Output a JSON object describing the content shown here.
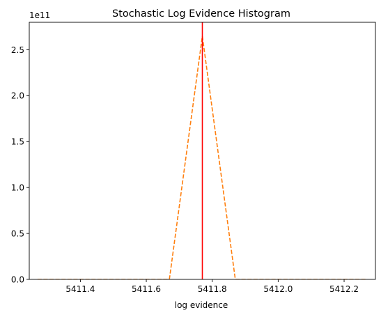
{
  "chart_data": {
    "type": "line",
    "title": "Stochastic Log Evidence Histogram",
    "xlabel": "log evidence",
    "ylabel": "",
    "scale_label": "1e11",
    "xlim": [
      5411.245,
      5412.295
    ],
    "ylim": [
      0,
      2.8
    ],
    "xticks": [
      5411.4,
      5411.6,
      5411.8,
      5412.0,
      5412.2
    ],
    "xtick_labels": [
      "5411.4",
      "5411.6",
      "5411.8",
      "5412.0",
      "5412.2"
    ],
    "yticks": [
      0.0,
      0.5,
      1.0,
      1.5,
      2.0,
      2.5
    ],
    "ytick_labels": [
      "0.0",
      "0.5",
      "1.0",
      "1.5",
      "2.0",
      "2.5"
    ],
    "grid": false,
    "series": [
      {
        "style": "dashed",
        "color": "#ff7f0e",
        "x": [
          5411.27,
          5411.67,
          5411.77,
          5411.87,
          5412.27
        ],
        "y": [
          0,
          0,
          2.65,
          0,
          0
        ]
      }
    ],
    "vlines": [
      {
        "x": 5411.77,
        "color": "#ff0000"
      }
    ]
  }
}
